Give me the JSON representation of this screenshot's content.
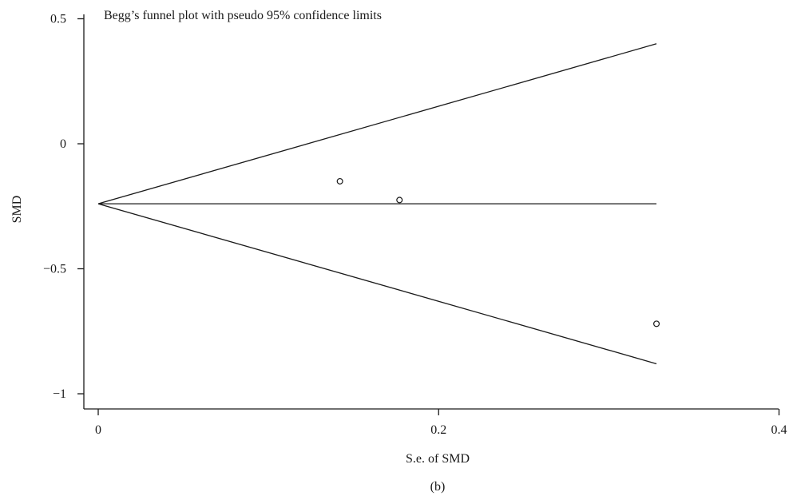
{
  "chart_data": {
    "type": "scatter",
    "title": "Begg’s funnel plot with pseudo 95% confidence limits",
    "xlabel": "S.e. of SMD",
    "ylabel": "SMD",
    "panel_label": "(b)",
    "xlim": [
      0,
      0.4
    ],
    "ylim": [
      -1,
      0.5
    ],
    "xticks": [
      0,
      0.2,
      0.4
    ],
    "xtick_labels": [
      "0",
      "0.2",
      "0.4"
    ],
    "yticks": [
      0.5,
      0,
      -0.5,
      -1
    ],
    "ytick_labels": [
      "0.5",
      "0",
      "−0.5",
      "−1"
    ],
    "pooled_estimate": -0.24,
    "limits": {
      "apex": [
        0,
        -0.24
      ],
      "max_se": 0.328,
      "upper_at_max_se": 0.4,
      "lower_at_max_se": -0.88
    },
    "points": [
      {
        "x": 0.142,
        "y": -0.15
      },
      {
        "x": 0.177,
        "y": -0.225
      },
      {
        "x": 0.328,
        "y": -0.72
      }
    ],
    "grid": false,
    "legend": "none"
  }
}
